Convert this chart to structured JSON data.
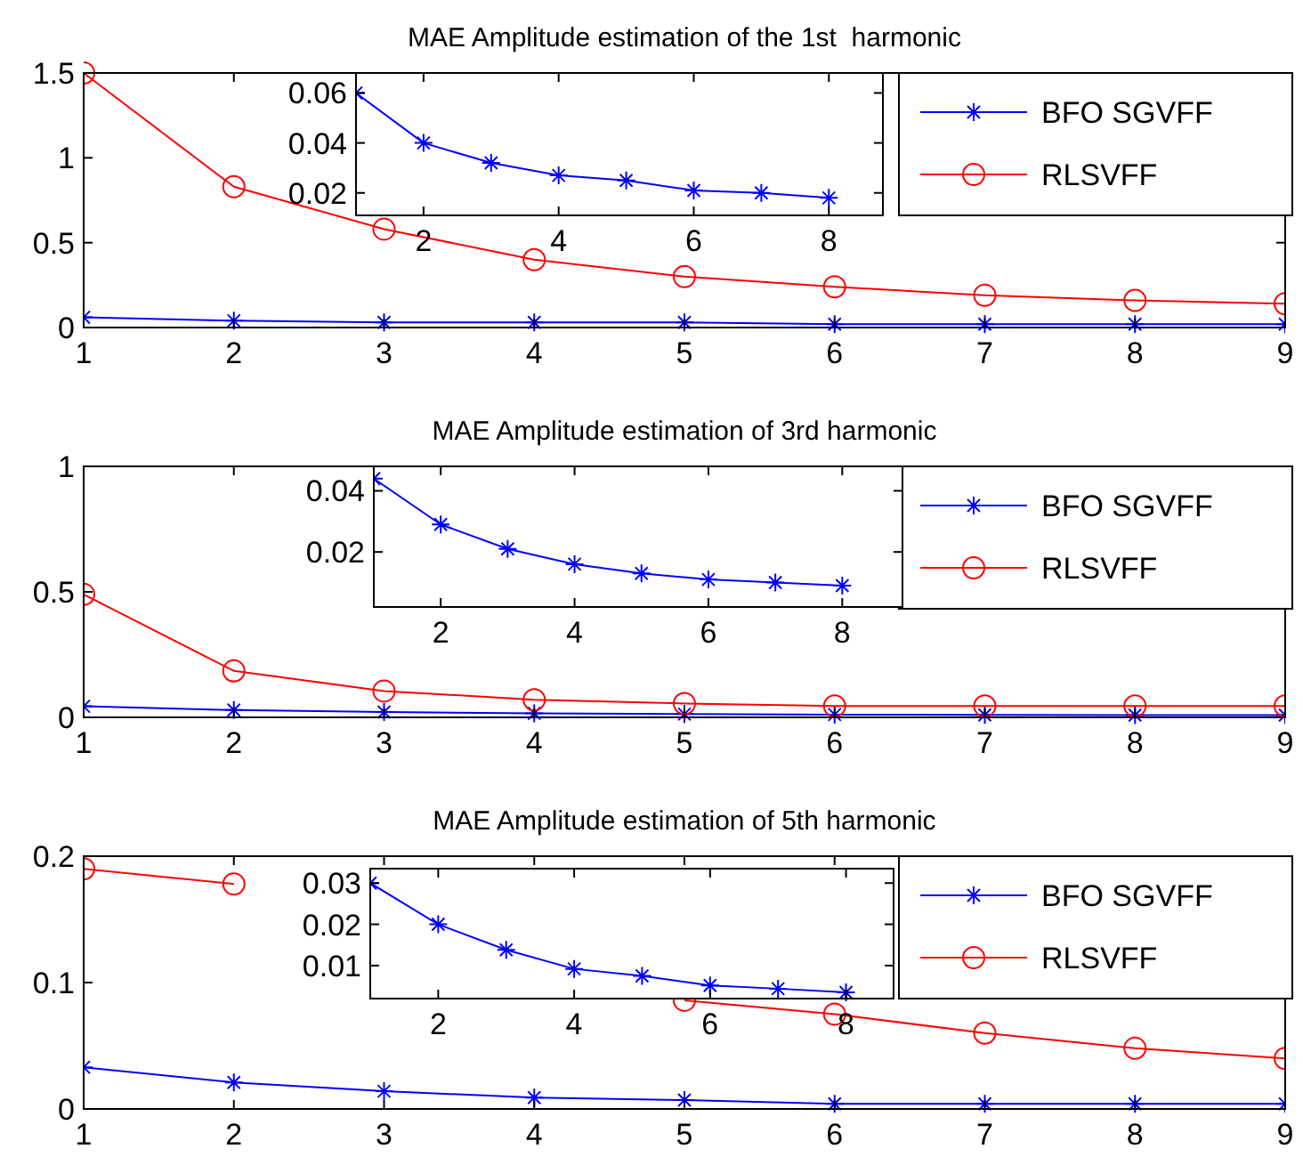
{
  "chart_data": [
    {
      "type": "line",
      "title": "MAE Amplitude estimation of the 1st  harmonic",
      "x": [
        1,
        2,
        3,
        4,
        5,
        6,
        7,
        8,
        9
      ],
      "xlim": [
        1,
        9
      ],
      "xticks": [
        1,
        2,
        3,
        4,
        5,
        6,
        7,
        8,
        9
      ],
      "ylim": [
        0,
        1.5
      ],
      "yticks": [
        0,
        0.5,
        1,
        1.5
      ],
      "legend": "top right",
      "grid": false,
      "series": [
        {
          "name": "BFO SGVFF",
          "color": "#0000ff",
          "marker": "cross",
          "values": [
            0.06,
            0.04,
            0.03,
            0.03,
            0.03,
            0.02,
            0.02,
            0.02,
            0.02
          ]
        },
        {
          "name": "RLSVFF",
          "color": "#ff0000",
          "marker": "circle",
          "values": [
            1.5,
            0.83,
            0.58,
            0.4,
            0.3,
            0.24,
            0.19,
            0.16,
            0.14
          ]
        }
      ]
    },
    {
      "type": "line",
      "x": [
        1,
        2,
        3,
        4,
        5,
        6,
        7,
        8
      ],
      "xlim": [
        1,
        8.8
      ],
      "xticks": [
        2,
        4,
        6,
        8
      ],
      "ylim": [
        0.011,
        0.068
      ],
      "yticks": [
        0.02,
        0.04,
        0.06
      ],
      "grid": false,
      "series": [
        {
          "color": "#0000ff",
          "marker": "cross",
          "values": [
            0.06,
            0.04,
            0.032,
            0.027,
            0.025,
            0.021,
            0.02,
            0.018
          ]
        }
      ]
    },
    {
      "type": "line",
      "title": "MAE Amplitude estimation of 3rd harmonic",
      "x": [
        1,
        2,
        3,
        4,
        5,
        6,
        7,
        8,
        9
      ],
      "xlim": [
        1,
        9
      ],
      "xticks": [
        1,
        2,
        3,
        4,
        5,
        6,
        7,
        8,
        9
      ],
      "ylim": [
        0,
        1
      ],
      "yticks": [
        0,
        0.5,
        1
      ],
      "legend": "top right",
      "grid": false,
      "series": [
        {
          "name": "BFO SGVFF",
          "color": "#0000ff",
          "marker": "cross",
          "values": [
            0.044,
            0.029,
            0.021,
            0.016,
            0.013,
            0.011,
            0.01,
            0.009,
            0.009
          ]
        },
        {
          "name": "RLSVFF",
          "color": "#ff0000",
          "marker": "circle",
          "values": [
            0.49,
            0.185,
            0.105,
            0.07,
            0.055,
            0.045,
            0.045,
            0.045,
            0.045
          ]
        }
      ]
    },
    {
      "type": "line",
      "x": [
        1,
        2,
        3,
        4,
        5,
        6,
        7,
        8
      ],
      "xlim": [
        1,
        8.9
      ],
      "xticks": [
        2,
        4,
        6,
        8
      ],
      "ylim": [
        0.002,
        0.048
      ],
      "yticks": [
        0.02,
        0.04
      ],
      "grid": false,
      "series": [
        {
          "color": "#0000ff",
          "marker": "cross",
          "values": [
            0.044,
            0.029,
            0.021,
            0.016,
            0.013,
            0.011,
            0.01,
            0.009
          ]
        }
      ]
    },
    {
      "type": "line",
      "title": "MAE Amplitude estimation of 5th harmonic",
      "x": [
        1,
        2,
        3,
        4,
        5,
        6,
        7,
        8,
        9
      ],
      "xlim": [
        1,
        9
      ],
      "xticks": [
        1,
        2,
        3,
        4,
        5,
        6,
        7,
        8,
        9
      ],
      "ylim": [
        0,
        0.2
      ],
      "yticks": [
        0,
        0.1,
        0.2
      ],
      "legend": "top right",
      "grid": false,
      "series": [
        {
          "name": "BFO SGVFF",
          "color": "#0000ff",
          "marker": "cross",
          "values": [
            0.033,
            0.021,
            0.014,
            0.009,
            0.007,
            0.004,
            0.004,
            0.004,
            0.004
          ]
        },
        {
          "name": "RLSVFF",
          "color": "#ff0000",
          "marker": "circle",
          "values": [
            0.19,
            0.178,
            null,
            null,
            0.086,
            0.075,
            0.06,
            0.048,
            0.04
          ]
        }
      ]
    },
    {
      "type": "line",
      "x": [
        1,
        2,
        3,
        4,
        5,
        6,
        7,
        8
      ],
      "xlim": [
        1,
        8.7
      ],
      "xticks": [
        2,
        4,
        6,
        8
      ],
      "ylim": [
        0.002,
        0.0335
      ],
      "yticks": [
        0.01,
        0.02,
        0.03
      ],
      "grid": false,
      "series": [
        {
          "color": "#0000ff",
          "marker": "cross",
          "values": [
            0.03,
            0.02,
            0.0138,
            0.0092,
            0.0075,
            0.0052,
            0.0044,
            0.0035
          ]
        }
      ]
    }
  ]
}
